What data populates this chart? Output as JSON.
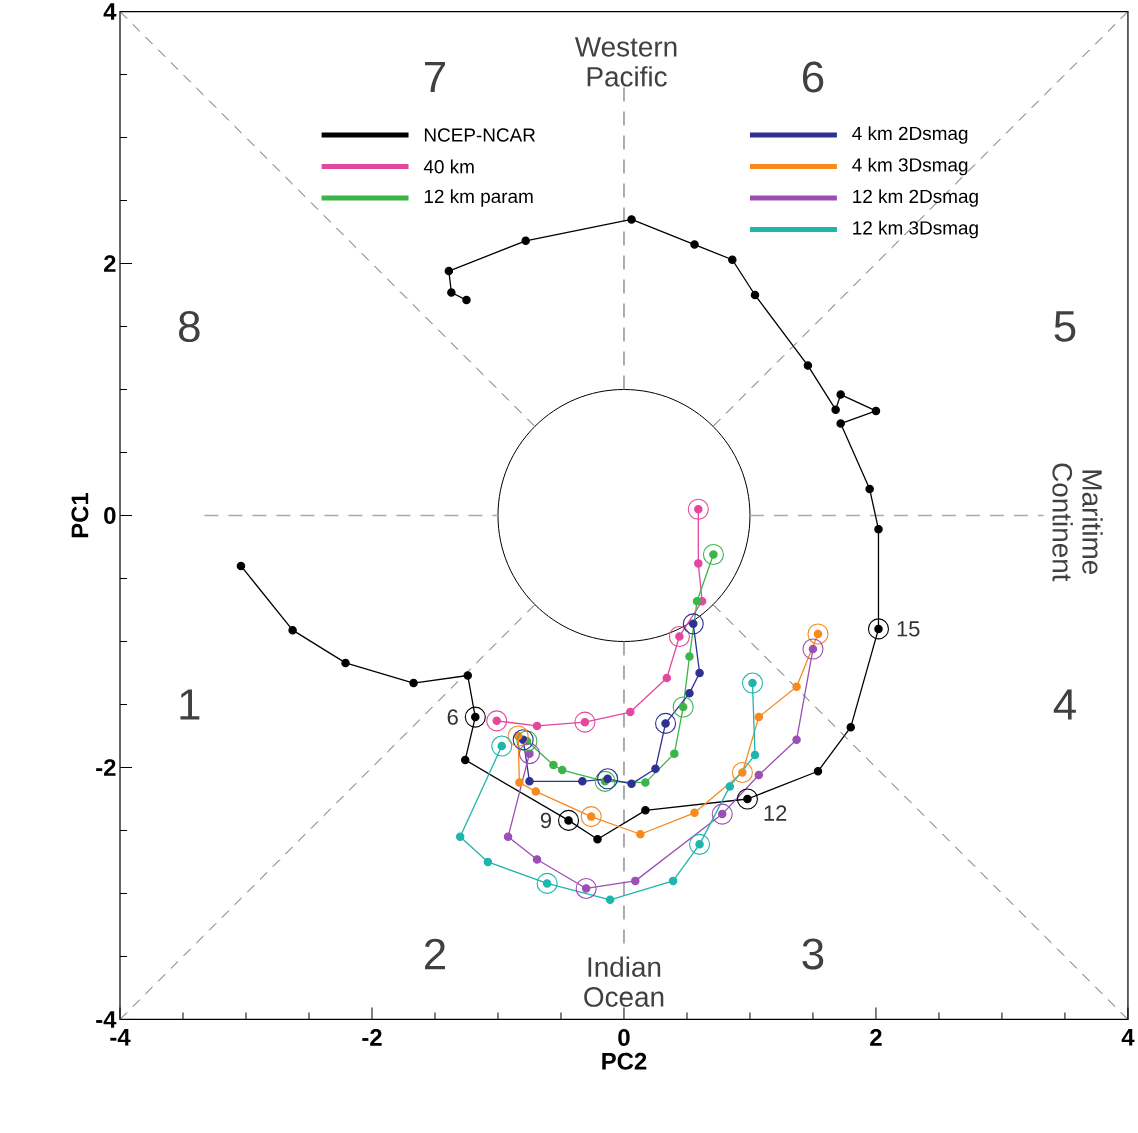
{
  "chart_data": {
    "type": "line",
    "xlabel": "PC2",
    "ylabel": "PC1",
    "xlim": [
      -4,
      4
    ],
    "ylim": [
      -4,
      4
    ],
    "xticks": [
      -4,
      -2,
      0,
      2,
      4
    ],
    "yticks": [
      -4,
      -2,
      0,
      2,
      4
    ],
    "marker": "circle",
    "line_style": "solid",
    "legend": "top",
    "ref_lines": [
      {
        "axis": "x",
        "value": 0,
        "color": "#999999",
        "line_style": "dashed"
      },
      {
        "axis": "y",
        "value": 0,
        "color": "#aaaaaa",
        "line_style": "dashed"
      }
    ],
    "series": [
      {
        "name": "NCEP-NCAR",
        "color": "#000000",
        "x": [
          -3.04,
          -2.63,
          -2.21,
          -1.67,
          -1.24,
          -1.18,
          -1.26,
          -0.44,
          -0.21,
          0.17,
          0.98,
          1.54,
          1.8,
          2.02,
          2.02,
          1.95,
          1.72,
          2.0,
          1.72,
          1.68,
          1.46,
          1.04,
          0.86,
          0.56,
          0.06,
          -0.78,
          -1.39,
          -1.37,
          -1.25
        ],
        "values": [
          -0.4,
          -0.91,
          -1.17,
          -1.33,
          -1.27,
          -1.6,
          -1.94,
          -2.42,
          -2.57,
          -2.34,
          -2.25,
          -2.03,
          -1.68,
          -0.9,
          -0.11,
          0.21,
          0.73,
          0.83,
          0.96,
          0.84,
          1.19,
          1.75,
          2.03,
          2.15,
          2.35,
          2.18,
          1.94,
          1.77,
          1.71
        ]
      },
      {
        "name": "40 km",
        "color": "#e4489e",
        "x": [
          -1.01,
          -0.69,
          -0.31,
          0.05,
          0.34,
          0.44,
          0.62,
          0.59,
          0.59
        ],
        "values": [
          -1.63,
          -1.67,
          -1.64,
          -1.56,
          -1.29,
          -0.96,
          -0.68,
          -0.38,
          0.05
        ]
      },
      {
        "name": "12 km param",
        "color": "#3bb54a",
        "x": [
          -0.77,
          -0.56,
          -0.49,
          -0.15,
          0.17,
          0.4,
          0.47,
          0.52,
          0.58,
          0.71
        ],
        "values": [
          -1.79,
          -1.98,
          -2.02,
          -2.11,
          -2.12,
          -1.89,
          -1.52,
          -1.12,
          -0.68,
          -0.31
        ]
      },
      {
        "name": "4 km 2Dsmag",
        "color": "#2e3192",
        "x": [
          -0.8,
          -0.75,
          -0.33,
          -0.13,
          0.06,
          0.25,
          0.33,
          0.52,
          0.6,
          0.55
        ],
        "values": [
          -1.78,
          -2.11,
          -2.11,
          -2.09,
          -2.13,
          -2.01,
          -1.65,
          -1.41,
          -1.25,
          -0.86
        ]
      },
      {
        "name": "4 km 3Dsmag",
        "color": "#f7891f",
        "x": [
          -0.84,
          -0.83,
          -0.7,
          -0.26,
          0.13,
          0.56,
          0.94,
          1.07,
          1.37,
          1.54
        ],
        "values": [
          -1.75,
          -2.12,
          -2.19,
          -2.39,
          -2.53,
          -2.36,
          -2.04,
          -1.6,
          -1.36,
          -0.94
        ]
      },
      {
        "name": "12 km 2Dsmag",
        "color": "#9b4fb5",
        "x": [
          -0.75,
          -0.92,
          -0.69,
          -0.3,
          0.09,
          0.78,
          1.07,
          1.37,
          1.5
        ],
        "values": [
          -1.89,
          -2.55,
          -2.73,
          -2.96,
          -2.9,
          -2.37,
          -2.06,
          -1.78,
          -1.06
        ]
      },
      {
        "name": "12 km 3Dsmag",
        "color": "#1fb5ac",
        "x": [
          -0.97,
          -1.3,
          -1.08,
          -0.61,
          -0.11,
          0.39,
          0.6,
          0.84,
          1.04,
          1.02
        ],
        "values": [
          -1.83,
          -2.55,
          -2.75,
          -2.92,
          -3.05,
          -2.9,
          -2.61,
          -2.15,
          -1.9,
          -1.33
        ]
      },
      {
        "color": "#595959",
        "line_style": "dashed",
        "marker": "none",
        "x": [
          -4,
          -0.71
        ],
        "values": [
          4,
          0.71
        ]
      },
      {
        "color": "#595959",
        "line_style": "dashed",
        "marker": "none",
        "x": [
          0.71,
          4
        ],
        "values": [
          0.71,
          4
        ]
      },
      {
        "color": "#595959",
        "line_style": "dashed",
        "marker": "none",
        "x": [
          0.71,
          4
        ],
        "values": [
          -0.71,
          -4
        ]
      },
      {
        "color": "#595959",
        "line_style": "dashed",
        "marker": "none",
        "x": [
          -4,
          -0.71
        ],
        "values": [
          -4,
          -0.71
        ]
      },
      {
        "type": "scatter",
        "color": "#000000",
        "x": [
          -1.18,
          -0.44,
          0.98,
          2.02
        ],
        "values": [
          -1.6,
          -2.42,
          -2.25,
          -0.9
        ]
      },
      {
        "type": "scatter",
        "color": "#e4489e",
        "x": [
          -1.01,
          -0.31,
          0.44,
          0.59
        ],
        "values": [
          -1.63,
          -1.64,
          -0.96,
          0.05
        ]
      },
      {
        "type": "scatter",
        "color": "#3bb54a",
        "x": [
          -0.77,
          -0.15,
          0.47,
          0.71
        ],
        "values": [
          -1.79,
          -2.11,
          -1.52,
          -0.31
        ]
      },
      {
        "type": "scatter",
        "color": "#2e3192",
        "x": [
          -0.8,
          -0.13,
          0.33,
          0.55
        ],
        "values": [
          -1.78,
          -2.09,
          -1.65,
          -0.86
        ]
      },
      {
        "type": "scatter",
        "color": "#f7891f",
        "x": [
          -0.84,
          -0.26,
          0.94,
          1.54
        ],
        "values": [
          -1.75,
          -2.39,
          -2.04,
          -0.94
        ]
      },
      {
        "type": "scatter",
        "color": "#9b4fb5",
        "x": [
          -0.75,
          -0.3,
          0.78,
          1.5
        ],
        "values": [
          -1.89,
          -2.96,
          -2.37,
          -1.06
        ]
      },
      {
        "type": "scatter",
        "color": "#1fb5ac",
        "x": [
          -0.97,
          -0.61,
          0.6,
          1.02
        ],
        "values": [
          -1.83,
          -2.92,
          -2.61,
          -1.33
        ]
      }
    ],
    "annotations": [
      "7",
      "6",
      "8",
      "5",
      "1",
      "4",
      "2",
      "3",
      "Western Pacific",
      "Maritime Continent",
      "Indian Ocean",
      {
        "text": "6",
        "x": -1.18,
        "y": -1.6
      },
      {
        "text": "9",
        "x": -0.44,
        "y": -2.42
      },
      {
        "text": "12",
        "x": 0.98,
        "y": -2.25
      },
      {
        "text": "15",
        "x": 2.02,
        "y": -0.9
      }
    ]
  }
}
